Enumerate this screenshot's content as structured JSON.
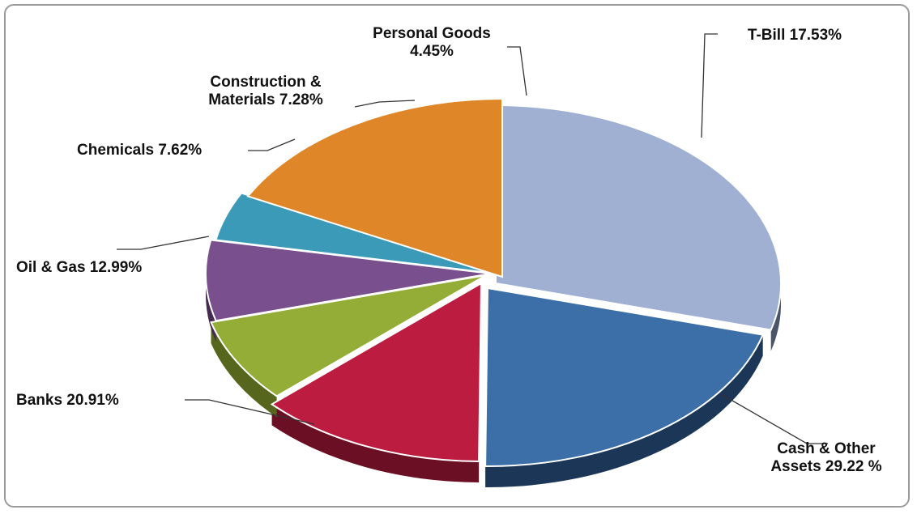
{
  "chart_data": {
    "type": "pie",
    "title": "",
    "slices": [
      {
        "name": "Cash & Other Assets",
        "value": 29.22,
        "label_lines": [
          "Cash & Other",
          "Assets 29.22 %"
        ],
        "color": "#9fb0d3",
        "side": "#4a5568"
      },
      {
        "name": "Banks",
        "value": 20.91,
        "label_lines": [
          "Banks 20.91%"
        ],
        "color": "#3c6ea8",
        "side": "#1b3657"
      },
      {
        "name": "Oil & Gas",
        "value": 12.99,
        "label_lines": [
          "Oil & Gas 12.99%"
        ],
        "color": "#bb1c3f",
        "side": "#6a0f24"
      },
      {
        "name": "Chemicals",
        "value": 7.62,
        "label_lines": [
          "Chemicals 7.62%"
        ],
        "color": "#94ad37",
        "side": "#56661c"
      },
      {
        "name": "Construction & Materials",
        "value": 7.28,
        "label_lines": [
          "Construction &",
          "Materials 7.28%"
        ],
        "color": "#7a4f8e",
        "side": "#45294f"
      },
      {
        "name": "Personal Goods",
        "value": 4.45,
        "label_lines": [
          "Personal Goods",
          "4.45%"
        ],
        "color": "#3a9ab8",
        "side": "#1e5a6b"
      },
      {
        "name": "T-Bill",
        "value": 17.53,
        "label_lines": [
          "T-Bill 17.53%"
        ],
        "color": "#df8628",
        "side": "#8a4c12"
      }
    ]
  }
}
